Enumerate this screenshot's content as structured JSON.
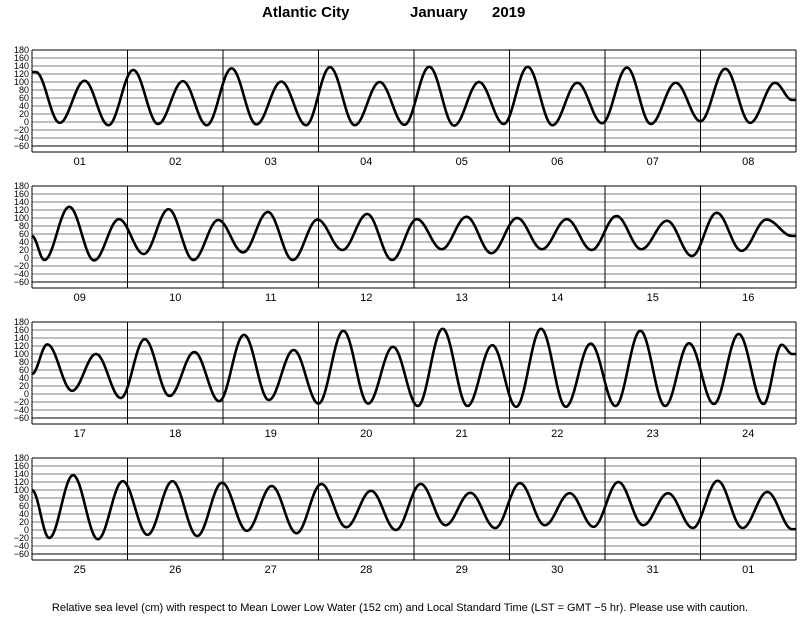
{
  "header": {
    "location": "Atlantic City",
    "month": "January",
    "year": "2019"
  },
  "footer": {
    "note": "Relative sea level (cm) with respect to Mean Lower Low Water (152 cm) and Local Standard Time (LST = GMT −5 hr). Please use with caution."
  },
  "colors": {
    "curve": "#000000",
    "grid": "#000000"
  },
  "chart_data": [
    {
      "type": "line",
      "title": "",
      "xlabel": "",
      "ylabel": "",
      "ylim": [
        -60,
        180
      ],
      "yticks": [
        "180",
        "160",
        "140",
        "120",
        "100",
        "80",
        "60",
        "40",
        "20",
        "0",
        "−20",
        "−40",
        "−60"
      ],
      "categories": [
        "01",
        "02",
        "03",
        "04",
        "05",
        "06",
        "07",
        "08"
      ],
      "tide_extremes": {
        "t_days": [
          0.04,
          0.29,
          0.55,
          0.8,
          1.06,
          1.32,
          1.58,
          1.83,
          2.09,
          2.35,
          2.61,
          2.87,
          3.12,
          3.38,
          3.64,
          3.9,
          4.16,
          4.42,
          4.68,
          4.94,
          5.19,
          5.45,
          5.71,
          5.97,
          6.23,
          6.48,
          6.74,
          7.0,
          7.26,
          7.52,
          7.78,
          7.96
        ],
        "heights_cm": [
          125,
          -2,
          103,
          -8,
          130,
          -5,
          102,
          -8,
          134,
          -6,
          101,
          -8,
          137,
          -8,
          100,
          -7,
          138,
          -9,
          100,
          -5,
          138,
          -8,
          98,
          -3,
          136,
          -5,
          98,
          2,
          133,
          -2,
          98,
          55
        ]
      }
    },
    {
      "type": "line",
      "title": "",
      "xlabel": "",
      "ylabel": "",
      "ylim": [
        -60,
        180
      ],
      "yticks": [
        "180",
        "160",
        "140",
        "120",
        "100",
        "80",
        "60",
        "40",
        "20",
        "0",
        "−20",
        "−40",
        "−60"
      ],
      "categories": [
        "09",
        "10",
        "11",
        "12",
        "13",
        "14",
        "15",
        "16"
      ],
      "tide_extremes": {
        "t_days": [
          0.0,
          0.13,
          0.39,
          0.65,
          0.91,
          1.17,
          1.43,
          1.69,
          1.95,
          2.21,
          2.47,
          2.73,
          2.99,
          3.25,
          3.51,
          3.77,
          4.03,
          4.29,
          4.55,
          4.81,
          5.08,
          5.34,
          5.6,
          5.86,
          6.12,
          6.38,
          6.65,
          6.91,
          7.17,
          7.43,
          7.69,
          7.96
        ],
        "heights_cm": [
          55,
          -5,
          128,
          -6,
          97,
          10,
          122,
          -5,
          95,
          14,
          115,
          -5,
          96,
          20,
          110,
          -5,
          97,
          22,
          103,
          12,
          100,
          22,
          97,
          20,
          105,
          22,
          93,
          5,
          113,
          18,
          96,
          55
        ]
      }
    },
    {
      "type": "line",
      "title": "",
      "xlabel": "",
      "ylabel": "",
      "ylim": [
        -60,
        180
      ],
      "yticks": [
        "180",
        "160",
        "140",
        "120",
        "100",
        "80",
        "60",
        "40",
        "20",
        "0",
        "−20",
        "−40",
        "−60"
      ],
      "categories": [
        "17",
        "18",
        "19",
        "20",
        "21",
        "22",
        "23",
        "24"
      ],
      "tide_extremes": {
        "t_days": [
          0.0,
          0.16,
          0.42,
          0.67,
          0.93,
          1.18,
          1.44,
          1.7,
          1.96,
          2.22,
          2.48,
          2.74,
          3.0,
          3.26,
          3.52,
          3.78,
          4.04,
          4.3,
          4.56,
          4.82,
          5.07,
          5.33,
          5.59,
          5.85,
          6.11,
          6.37,
          6.63,
          6.88,
          7.14,
          7.4,
          7.66,
          7.85,
          7.96
        ],
        "heights_cm": [
          50,
          124,
          8,
          100,
          -10,
          137,
          -5,
          105,
          -18,
          148,
          -15,
          110,
          -24,
          158,
          -24,
          118,
          -30,
          163,
          -30,
          122,
          -32,
          163,
          -32,
          126,
          -30,
          158,
          -30,
          127,
          -25,
          150,
          -25,
          123,
          100
        ]
      }
    },
    {
      "type": "line",
      "title": "",
      "xlabel": "",
      "ylabel": "",
      "ylim": [
        -60,
        180
      ],
      "yticks": [
        "180",
        "160",
        "140",
        "120",
        "100",
        "80",
        "60",
        "40",
        "20",
        "0",
        "−20",
        "−40",
        "−60"
      ],
      "categories": [
        "25",
        "26",
        "27",
        "28",
        "29",
        "30",
        "31",
        "01"
      ],
      "tide_extremes": {
        "t_days": [
          0.0,
          0.18,
          0.43,
          0.69,
          0.95,
          1.21,
          1.47,
          1.73,
          1.99,
          2.25,
          2.51,
          2.77,
          3.03,
          3.29,
          3.55,
          3.81,
          4.07,
          4.33,
          4.59,
          4.85,
          5.11,
          5.37,
          5.63,
          5.88,
          6.14,
          6.4,
          6.66,
          6.92,
          7.18,
          7.44,
          7.7,
          7.96
        ],
        "heights_cm": [
          100,
          -20,
          137,
          -23,
          122,
          -12,
          122,
          -15,
          118,
          -2,
          110,
          -8,
          115,
          7,
          98,
          0,
          115,
          12,
          93,
          5,
          117,
          12,
          92,
          8,
          120,
          12,
          92,
          5,
          123,
          5,
          95,
          2
        ]
      }
    }
  ]
}
